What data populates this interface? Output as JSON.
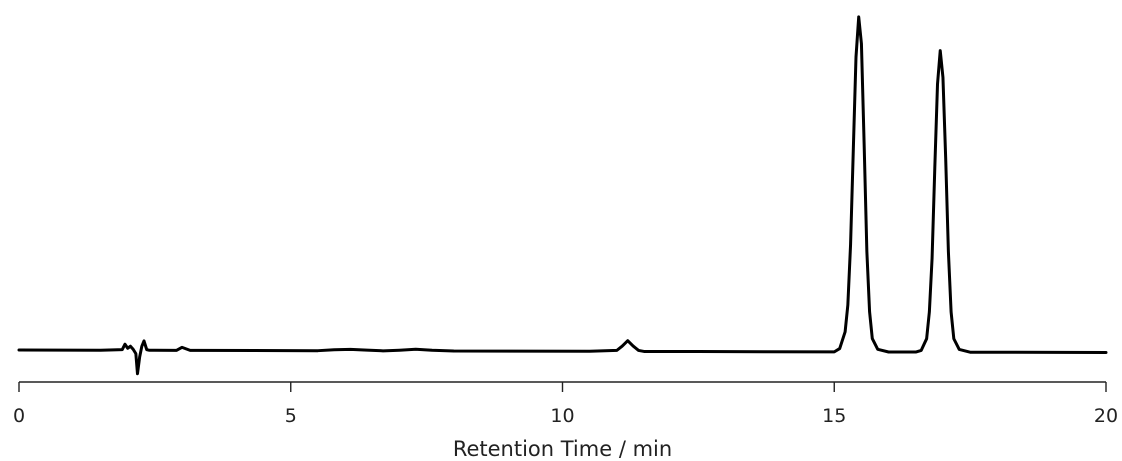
{
  "chart_data": {
    "type": "line",
    "title": "",
    "xlabel": "Retention Time / min",
    "ylabel": "",
    "xlim": [
      0,
      20
    ],
    "ylim": [
      0,
      100
    ],
    "grid": false,
    "legend": "none",
    "x_ticks": [
      0,
      5,
      10,
      15,
      20
    ],
    "x_tick_labels": [
      "0",
      "5",
      "10",
      "15",
      "20"
    ],
    "series": [
      {
        "color": "#000000",
        "x": [
          0.0,
          1.5,
          1.9,
          1.95,
          2.0,
          2.05,
          2.1,
          2.15,
          2.18,
          2.22,
          2.26,
          2.3,
          2.35,
          2.4,
          2.5,
          2.9,
          3.0,
          3.05,
          3.15,
          3.3,
          5.5,
          5.8,
          6.1,
          6.4,
          6.7,
          7.0,
          7.3,
          7.6,
          8.0,
          10.5,
          11.0,
          11.1,
          11.2,
          11.3,
          11.4,
          11.5,
          12.5,
          15.0,
          15.1,
          15.2,
          15.25,
          15.3,
          15.35,
          15.4,
          15.45,
          15.5,
          15.55,
          15.6,
          15.65,
          15.7,
          15.8,
          16.0,
          16.5,
          16.6,
          16.7,
          16.75,
          16.8,
          16.85,
          16.9,
          16.95,
          17.0,
          17.05,
          17.1,
          17.15,
          17.2,
          17.3,
          17.5,
          18.0,
          20.0
        ],
        "y": [
          0.0,
          0.0,
          0.2,
          1.8,
          0.6,
          1.2,
          0.3,
          -1.0,
          -7.0,
          -2.0,
          1.2,
          2.8,
          0.2,
          0.0,
          0.0,
          0.0,
          0.9,
          0.6,
          0.0,
          0.0,
          0.0,
          0.3,
          0.4,
          0.2,
          0.0,
          0.2,
          0.5,
          0.2,
          0.0,
          0.0,
          0.3,
          1.6,
          3.2,
          1.6,
          0.3,
          0.0,
          0.0,
          0.0,
          1.0,
          6.0,
          14.0,
          32.0,
          60.0,
          88.0,
          100.0,
          92.0,
          62.0,
          30.0,
          12.0,
          4.0,
          0.8,
          0.0,
          0.0,
          0.5,
          4.0,
          12.0,
          28.0,
          55.0,
          80.0,
          90.0,
          82.0,
          58.0,
          30.0,
          12.0,
          4.0,
          0.8,
          0.0,
          0.0,
          0.0
        ]
      }
    ]
  }
}
